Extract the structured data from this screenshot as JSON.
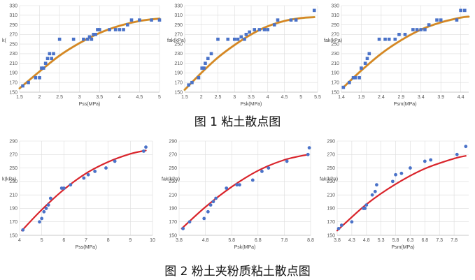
{
  "captions": {
    "figure1": "图 1 粘土散点图",
    "figure2": "图 2 粉土夹粉质粘土散点图"
  },
  "colors": {
    "point": "#4a72c8",
    "fit_orange": "#e07a1f",
    "fit_gold": "#c9a13b",
    "fit_red": "#d9242b",
    "grid": "#dcdcdc"
  },
  "chart_data": [
    {
      "type": "scatter",
      "xlabel": "Pss(MPa)",
      "ylabel": "k(",
      "xlim": [
        1.5,
        5
      ],
      "ylim": [
        150,
        330
      ],
      "xticks": [
        "1.5",
        "2",
        "2.5",
        "3",
        "3.5",
        "4",
        "4.5",
        "5"
      ],
      "yticks": [
        "150",
        "170",
        "190",
        "210",
        "230",
        "250",
        "270",
        "290",
        "310",
        "330"
      ],
      "grid": true,
      "fit": {
        "style": "orange-gold",
        "curve": [
          [
            1.5,
            158
          ],
          [
            2,
            193
          ],
          [
            2.5,
            226
          ],
          [
            3,
            252
          ],
          [
            3.5,
            273
          ],
          [
            4,
            288
          ],
          [
            4.5,
            298
          ],
          [
            5,
            303
          ]
        ]
      },
      "points": [
        [
          1.58,
          163
        ],
        [
          1.72,
          170
        ],
        [
          1.9,
          180
        ],
        [
          2.0,
          180
        ],
        [
          2.05,
          200
        ],
        [
          2.1,
          200
        ],
        [
          2.15,
          210
        ],
        [
          2.2,
          220
        ],
        [
          2.25,
          230
        ],
        [
          2.3,
          220
        ],
        [
          2.35,
          230
        ],
        [
          2.5,
          260
        ],
        [
          2.85,
          260
        ],
        [
          3.1,
          260
        ],
        [
          3.2,
          260
        ],
        [
          3.25,
          265
        ],
        [
          3.3,
          260
        ],
        [
          3.35,
          270
        ],
        [
          3.4,
          270
        ],
        [
          3.45,
          280
        ],
        [
          3.5,
          280
        ],
        [
          3.75,
          280
        ],
        [
          3.9,
          280
        ],
        [
          4.0,
          280
        ],
        [
          4.1,
          280
        ],
        [
          4.2,
          290
        ],
        [
          4.3,
          300
        ],
        [
          4.5,
          300
        ],
        [
          4.8,
          300
        ],
        [
          5.0,
          300
        ]
      ]
    },
    {
      "type": "scatter",
      "xlabel": "Psk(MPa)",
      "ylabel": "fak(kPa)",
      "xlim": [
        1.5,
        5.5
      ],
      "ylim": [
        150,
        330
      ],
      "xticks": [
        "1.5",
        "2",
        "2.5",
        "3",
        "3.5",
        "4",
        "4.5",
        "5",
        "5.5"
      ],
      "yticks": [
        "150",
        "170",
        "190",
        "210",
        "230",
        "250",
        "270",
        "290",
        "310",
        "330"
      ],
      "grid": true,
      "fit": {
        "style": "orange-gold",
        "curve": [
          [
            1.5,
            155
          ],
          [
            2,
            190
          ],
          [
            2.5,
            222
          ],
          [
            3,
            248
          ],
          [
            3.5,
            270
          ],
          [
            4,
            287
          ],
          [
            4.5,
            298
          ],
          [
            5,
            304
          ],
          [
            5.4,
            306
          ]
        ]
      },
      "points": [
        [
          1.62,
          165
        ],
        [
          1.72,
          170
        ],
        [
          1.92,
          180
        ],
        [
          2.02,
          200
        ],
        [
          2.08,
          200
        ],
        [
          2.12,
          210
        ],
        [
          2.2,
          220
        ],
        [
          2.3,
          230
        ],
        [
          2.5,
          260
        ],
        [
          2.8,
          260
        ],
        [
          3.0,
          260
        ],
        [
          3.1,
          260
        ],
        [
          3.2,
          265
        ],
        [
          3.3,
          260
        ],
        [
          3.35,
          270
        ],
        [
          3.45,
          275
        ],
        [
          3.6,
          280
        ],
        [
          3.75,
          280
        ],
        [
          3.9,
          280
        ],
        [
          4.0,
          280
        ],
        [
          4.2,
          290
        ],
        [
          4.3,
          300
        ],
        [
          4.7,
          300
        ],
        [
          4.85,
          300
        ],
        [
          5.4,
          320
        ]
      ]
    },
    {
      "type": "scatter",
      "xlabel": "Psm(MPa)",
      "ylabel": "fak(kPa)",
      "xlim": [
        1.4,
        4.6
      ],
      "ylim": [
        150,
        330
      ],
      "xticks": [
        "1.4",
        "1.9",
        "2.4",
        "2.9",
        "3.4",
        "3.9",
        "4.4"
      ],
      "yticks": [
        "150",
        "170",
        "190",
        "210",
        "230",
        "250",
        "270",
        "290",
        "310",
        "330"
      ],
      "grid": true,
      "fit": {
        "style": "orange-gold",
        "curve": [
          [
            1.45,
            160
          ],
          [
            1.9,
            195
          ],
          [
            2.4,
            230
          ],
          [
            2.9,
            258
          ],
          [
            3.4,
            280
          ],
          [
            3.9,
            295
          ],
          [
            4.4,
            305
          ],
          [
            4.6,
            307
          ]
        ]
      },
      "points": [
        [
          1.45,
          160
        ],
        [
          1.6,
          170
        ],
        [
          1.7,
          180
        ],
        [
          1.75,
          180
        ],
        [
          1.85,
          180
        ],
        [
          1.9,
          200
        ],
        [
          2.0,
          210
        ],
        [
          2.05,
          220
        ],
        [
          2.1,
          230
        ],
        [
          2.35,
          260
        ],
        [
          2.5,
          260
        ],
        [
          2.6,
          260
        ],
        [
          2.75,
          260
        ],
        [
          2.85,
          270
        ],
        [
          3.0,
          270
        ],
        [
          3.2,
          280
        ],
        [
          3.3,
          280
        ],
        [
          3.4,
          280
        ],
        [
          3.5,
          280
        ],
        [
          3.6,
          290
        ],
        [
          3.8,
          300
        ],
        [
          3.9,
          300
        ],
        [
          4.3,
          300
        ],
        [
          4.4,
          320
        ],
        [
          4.5,
          320
        ]
      ]
    },
    {
      "type": "scatter",
      "xlabel": "Pss(MPa)",
      "ylabel": "k(kPa)",
      "xlim": [
        4,
        10
      ],
      "ylim": [
        150,
        290
      ],
      "xticks": [
        "4",
        "5",
        "6",
        "7",
        "8",
        "9",
        "10"
      ],
      "yticks": [
        "150",
        "170",
        "190",
        "210",
        "230",
        "250",
        "270",
        "290"
      ],
      "grid": true,
      "fit": {
        "style": "red",
        "curve": [
          [
            4.1,
            157
          ],
          [
            5,
            188
          ],
          [
            6,
            218
          ],
          [
            7,
            242
          ],
          [
            8,
            259
          ],
          [
            9,
            271
          ],
          [
            9.7,
            276
          ]
        ]
      },
      "points": [
        [
          4.15,
          158
        ],
        [
          4.9,
          170
        ],
        [
          5.0,
          175
        ],
        [
          5.1,
          185
        ],
        [
          5.2,
          190
        ],
        [
          5.3,
          195
        ],
        [
          5.4,
          205
        ],
        [
          5.9,
          220
        ],
        [
          6.0,
          220
        ],
        [
          6.3,
          225
        ],
        [
          6.9,
          235
        ],
        [
          7.1,
          240
        ],
        [
          7.4,
          245
        ],
        [
          7.9,
          250
        ],
        [
          8.3,
          260
        ],
        [
          9.6,
          275
        ],
        [
          9.7,
          281
        ]
      ]
    },
    {
      "type": "scatter",
      "xlabel": "Psk(MPa)",
      "ylabel": "fak(kPa)",
      "xlim": [
        3.8,
        8.8
      ],
      "ylim": [
        150,
        290
      ],
      "xticks": [
        "3.8",
        "4.8",
        "5.8",
        "6.8",
        "7.8",
        "8.8"
      ],
      "yticks": [
        "150",
        "170",
        "190",
        "210",
        "230",
        "250",
        "270",
        "290"
      ],
      "grid": true,
      "fit": {
        "style": "red",
        "curve": [
          [
            3.9,
            160
          ],
          [
            4.8,
            192
          ],
          [
            5.8,
            222
          ],
          [
            6.8,
            246
          ],
          [
            7.8,
            262
          ],
          [
            8.7,
            270
          ]
        ]
      },
      "points": [
        [
          3.95,
          160
        ],
        [
          4.2,
          170
        ],
        [
          4.75,
          175
        ],
        [
          4.9,
          185
        ],
        [
          5.0,
          195
        ],
        [
          5.1,
          200
        ],
        [
          5.2,
          205
        ],
        [
          5.6,
          220
        ],
        [
          6.0,
          225
        ],
        [
          6.1,
          225
        ],
        [
          6.6,
          232
        ],
        [
          6.95,
          245
        ],
        [
          7.2,
          250
        ],
        [
          7.9,
          260
        ],
        [
          8.7,
          270
        ],
        [
          8.75,
          280
        ]
      ]
    },
    {
      "type": "scatter",
      "xlabel": "Psm(MPa)",
      "ylabel": "fak(kPa)",
      "xlim": [
        3.8,
        8.3
      ],
      "ylim": [
        150,
        290
      ],
      "xticks": [
        "3.8",
        "4.3",
        "4.8",
        "5.3",
        "5.8",
        "6.3",
        "6.8",
        "7.3",
        "7.8"
      ],
      "yticks": [
        "150",
        "170",
        "190",
        "210",
        "230",
        "250",
        "270",
        "290"
      ],
      "grid": true,
      "fit": {
        "style": "red",
        "curve": [
          [
            3.8,
            157
          ],
          [
            4.8,
            196
          ],
          [
            5.8,
            226
          ],
          [
            6.8,
            249
          ],
          [
            7.8,
            264
          ],
          [
            8.2,
            268
          ]
        ]
      },
      "points": [
        [
          3.85,
          160
        ],
        [
          3.95,
          165
        ],
        [
          4.3,
          170
        ],
        [
          4.7,
          190
        ],
        [
          4.75,
          190
        ],
        [
          4.8,
          195
        ],
        [
          5.0,
          210
        ],
        [
          5.1,
          215
        ],
        [
          5.15,
          225
        ],
        [
          5.7,
          230
        ],
        [
          5.8,
          240
        ],
        [
          6.0,
          242
        ],
        [
          6.3,
          250
        ],
        [
          6.8,
          260
        ],
        [
          7.0,
          262
        ],
        [
          7.9,
          270
        ],
        [
          8.2,
          282
        ]
      ]
    }
  ]
}
